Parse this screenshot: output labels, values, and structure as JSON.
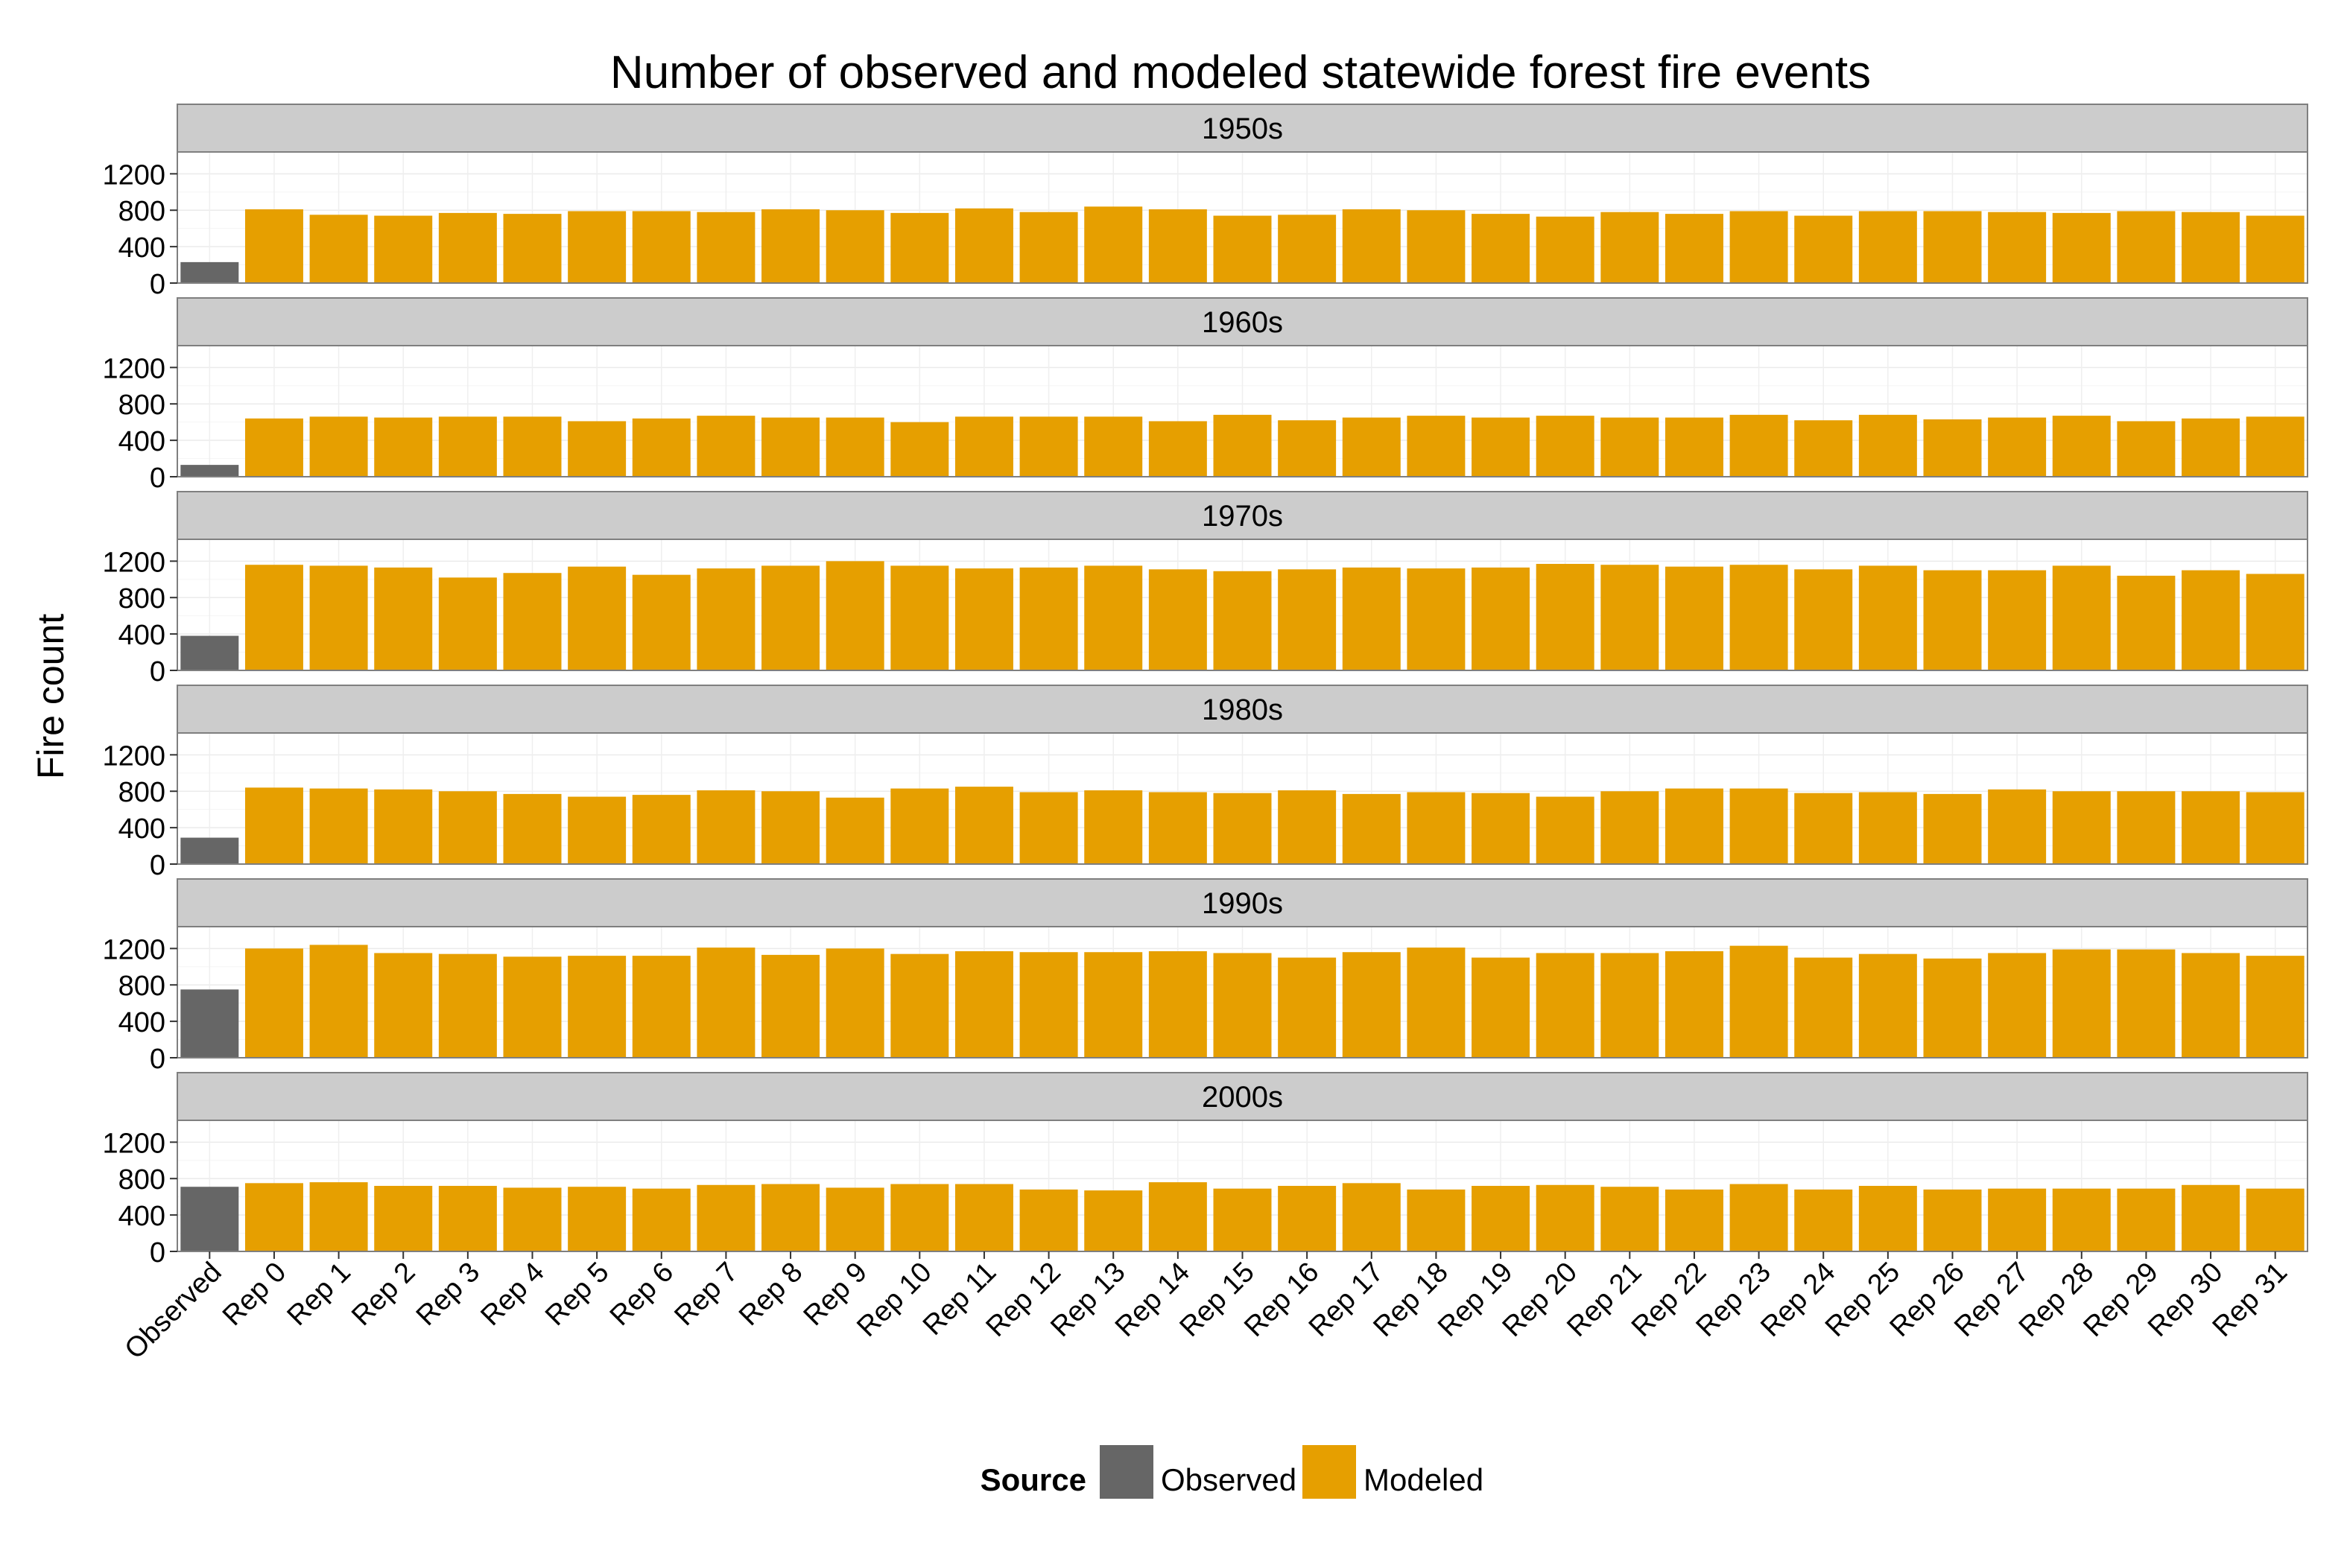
{
  "chart_data": {
    "type": "bar",
    "title": "Number of observed and modeled statewide forest fire events",
    "xlabel": "",
    "ylabel": "Fire count",
    "ylim": [
      0,
      1200
    ],
    "yticks": [
      0,
      400,
      800,
      1200
    ],
    "grid": true,
    "legend": {
      "title": "Source",
      "placement": "bottom",
      "entries": [
        {
          "label": "Observed",
          "color": "#666666"
        },
        {
          "label": "Modeled",
          "color": "#E69F00"
        }
      ]
    },
    "categories": [
      "Observed",
      "Rep 0",
      "Rep 1",
      "Rep 2",
      "Rep 3",
      "Rep 4",
      "Rep 5",
      "Rep 6",
      "Rep 7",
      "Rep 8",
      "Rep 9",
      "Rep 10",
      "Rep 11",
      "Rep 12",
      "Rep 13",
      "Rep 14",
      "Rep 15",
      "Rep 16",
      "Rep 17",
      "Rep 18",
      "Rep 19",
      "Rep 20",
      "Rep 21",
      "Rep 22",
      "Rep 23",
      "Rep 24",
      "Rep 25",
      "Rep 26",
      "Rep 27",
      "Rep 28",
      "Rep 29",
      "Rep 30",
      "Rep 31"
    ],
    "facets": [
      {
        "label": "1950s",
        "values": [
          230,
          810,
          750,
          740,
          770,
          760,
          790,
          790,
          780,
          810,
          800,
          770,
          820,
          780,
          840,
          810,
          740,
          750,
          810,
          800,
          760,
          730,
          780,
          760,
          790,
          740,
          790,
          790,
          780,
          770,
          790,
          780,
          740
        ]
      },
      {
        "label": "1960s",
        "values": [
          130,
          640,
          660,
          650,
          660,
          660,
          610,
          640,
          670,
          650,
          650,
          600,
          660,
          660,
          660,
          610,
          680,
          620,
          650,
          670,
          650,
          670,
          650,
          650,
          680,
          620,
          680,
          630,
          650,
          670,
          610,
          640,
          660
        ]
      },
      {
        "label": "1970s",
        "values": [
          380,
          1160,
          1150,
          1130,
          1020,
          1070,
          1140,
          1050,
          1120,
          1150,
          1200,
          1150,
          1120,
          1130,
          1150,
          1110,
          1090,
          1110,
          1130,
          1120,
          1130,
          1170,
          1160,
          1140,
          1160,
          1110,
          1150,
          1100,
          1100,
          1150,
          1040,
          1100,
          1060
        ]
      },
      {
        "label": "1980s",
        "values": [
          290,
          840,
          830,
          820,
          800,
          770,
          740,
          760,
          810,
          800,
          730,
          830,
          850,
          790,
          810,
          790,
          780,
          810,
          770,
          790,
          780,
          740,
          800,
          830,
          830,
          780,
          790,
          770,
          820,
          800,
          800,
          800,
          790
        ]
      },
      {
        "label": "1990s",
        "values": [
          750,
          1200,
          1240,
          1150,
          1140,
          1110,
          1120,
          1120,
          1210,
          1130,
          1200,
          1140,
          1170,
          1160,
          1160,
          1170,
          1150,
          1100,
          1160,
          1210,
          1100,
          1150,
          1150,
          1170,
          1230,
          1100,
          1140,
          1090,
          1150,
          1190,
          1190,
          1150,
          1120
        ]
      },
      {
        "label": "2000s",
        "values": [
          710,
          750,
          760,
          720,
          720,
          700,
          710,
          690,
          730,
          740,
          700,
          740,
          740,
          680,
          670,
          760,
          690,
          720,
          750,
          680,
          720,
          730,
          710,
          680,
          740,
          680,
          720,
          680,
          690,
          690,
          690,
          730,
          690
        ]
      }
    ]
  }
}
